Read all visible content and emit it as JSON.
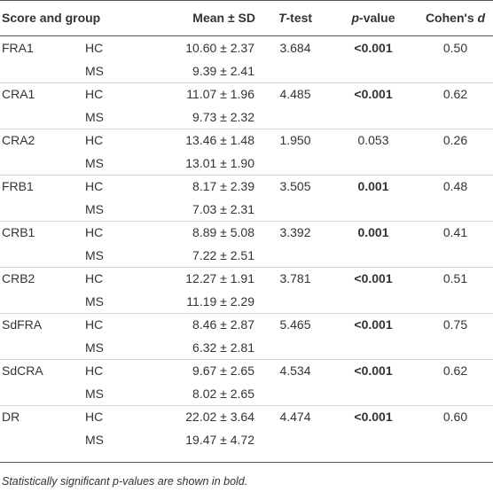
{
  "table": {
    "columns": [
      "Score and group",
      "Mean ± SD",
      [
        "T",
        "-test"
      ],
      [
        "p",
        "-value"
      ],
      [
        "Cohen's ",
        "d"
      ]
    ],
    "groups": [
      {
        "score": "FRA1",
        "rows": [
          [
            "HC",
            "10.60 ± 2.37"
          ],
          [
            "MS",
            "9.39 ± 2.41"
          ]
        ],
        "t": "3.684",
        "p": "<0.001",
        "significant": true,
        "d": "0.50"
      },
      {
        "score": "CRA1",
        "rows": [
          [
            "HC",
            "11.07 ± 1.96"
          ],
          [
            "MS",
            "9.73 ± 2.32"
          ]
        ],
        "t": "4.485",
        "p": "<0.001",
        "significant": true,
        "d": "0.62"
      },
      {
        "score": "CRA2",
        "rows": [
          [
            "HC",
            "13.46 ± 1.48"
          ],
          [
            "MS",
            "13.01 ± 1.90"
          ]
        ],
        "t": "1.950",
        "p": "0.053",
        "significant": false,
        "d": "0.26"
      },
      {
        "score": "FRB1",
        "rows": [
          [
            "HC",
            "8.17 ± 2.39"
          ],
          [
            "MS",
            "7.03 ± 2.31"
          ]
        ],
        "t": "3.505",
        "p": "0.001",
        "significant": true,
        "d": "0.48"
      },
      {
        "score": "CRB1",
        "rows": [
          [
            "HC",
            "8.89 ± 5.08"
          ],
          [
            "MS",
            "7.22 ± 2.51"
          ]
        ],
        "t": "3.392",
        "p": "0.001",
        "significant": true,
        "d": "0.41"
      },
      {
        "score": "CRB2",
        "rows": [
          [
            "HC",
            "12.27 ± 1.91"
          ],
          [
            "MS",
            "11.19 ± 2.29"
          ]
        ],
        "t": "3.781",
        "p": "<0.001",
        "significant": true,
        "d": "0.51"
      },
      {
        "score": "SdFRA",
        "rows": [
          [
            "HC",
            "8.46 ± 2.87"
          ],
          [
            "MS",
            "6.32 ± 2.81"
          ]
        ],
        "t": "5.465",
        "p": "<0.001",
        "significant": true,
        "d": "0.75"
      },
      {
        "score": "SdCRA",
        "rows": [
          [
            "HC",
            "9.67 ± 2.65"
          ],
          [
            "MS",
            "8.02 ± 2.65"
          ]
        ],
        "t": "4.534",
        "p": "<0.001",
        "significant": true,
        "d": "0.62"
      },
      {
        "score": "DR",
        "rows": [
          [
            "HC",
            "22.02 ± 3.64"
          ],
          [
            "MS",
            "19.47 ± 4.72"
          ]
        ],
        "t": "4.474",
        "p": "<0.001",
        "significant": true,
        "d": "0.60"
      }
    ],
    "footnote": "Statistically significant p-values are shown in bold."
  }
}
